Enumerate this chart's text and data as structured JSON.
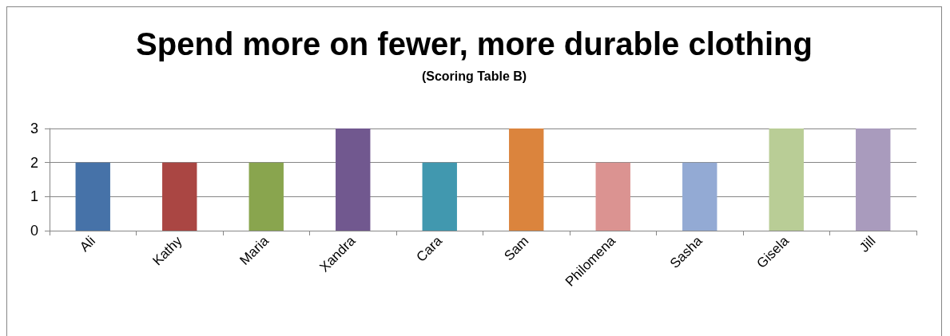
{
  "chart_data": {
    "type": "bar",
    "title": "Spend more on fewer, more durable clothing",
    "subtitle": "(Scoring Table B)",
    "categories": [
      "Ali",
      "Kathy",
      "Maria",
      "Xandra",
      "Cara",
      "Sam",
      "Philomena",
      "Sasha",
      "Gisela",
      "Jill"
    ],
    "values": [
      2,
      2,
      2,
      3,
      2,
      3,
      2,
      2,
      3,
      3
    ],
    "colors": [
      "#4672a8",
      "#aa4643",
      "#89a54e",
      "#71588f",
      "#4198af",
      "#db843d",
      "#db9391",
      "#93aad4",
      "#b9cd96",
      "#a99bbd"
    ],
    "ylim": [
      0,
      3
    ],
    "yticks": [
      0,
      1,
      2,
      3
    ],
    "grid": "y"
  }
}
